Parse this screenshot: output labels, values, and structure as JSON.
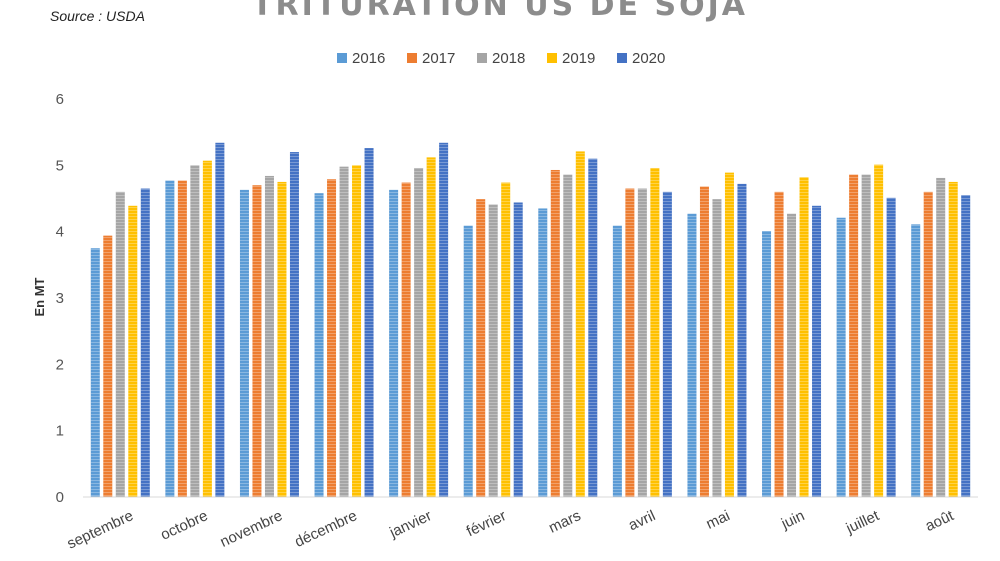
{
  "source": "Source : USDA",
  "colors": {
    "2016": "#5b9bd5",
    "2017": "#ed7d31",
    "2018": "#a5a5a5",
    "2019": "#ffc000",
    "2020": "#4472c4"
  },
  "chart_data": {
    "type": "bar",
    "title": "TRITURATION US DE SOJA",
    "xlabel": "",
    "ylabel": "En MT",
    "ylim": [
      0,
      6
    ],
    "yticks": [
      0,
      1,
      2,
      3,
      4,
      5,
      6
    ],
    "grid": false,
    "legend": "top-center",
    "categories": [
      "septembre",
      "octobre",
      "novembre",
      "décembre",
      "janvier",
      "février",
      "mars",
      "avril",
      "mai",
      "juin",
      "juillet",
      "août"
    ],
    "series": [
      {
        "name": "2016",
        "values": [
          3.75,
          4.77,
          4.63,
          4.58,
          4.63,
          4.09,
          4.35,
          4.09,
          4.27,
          4.01,
          4.21,
          4.11
        ]
      },
      {
        "name": "2017",
        "values": [
          3.94,
          4.77,
          4.7,
          4.79,
          4.74,
          4.49,
          4.93,
          4.65,
          4.68,
          4.6,
          4.86,
          4.6
        ]
      },
      {
        "name": "2018",
        "values": [
          4.6,
          5.0,
          4.84,
          4.98,
          4.96,
          4.41,
          4.86,
          4.65,
          4.49,
          4.27,
          4.86,
          4.81
        ]
      },
      {
        "name": "2019",
        "values": [
          4.39,
          5.07,
          4.75,
          5.0,
          5.12,
          4.74,
          5.21,
          4.96,
          4.89,
          4.82,
          5.01,
          4.75
        ]
      },
      {
        "name": "2020",
        "values": [
          4.65,
          5.34,
          5.2,
          5.26,
          5.34,
          4.44,
          5.1,
          4.6,
          4.72,
          4.39,
          4.51,
          4.55
        ]
      }
    ]
  }
}
